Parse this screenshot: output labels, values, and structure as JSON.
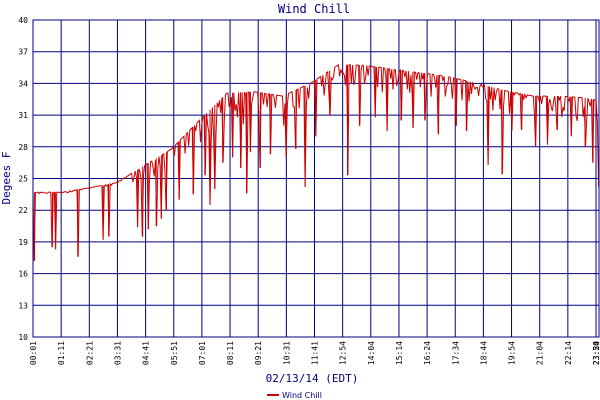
{
  "chart_data": {
    "type": "line",
    "title": "Wind Chill",
    "xlabel": "02/13/14 (EDT)",
    "ylabel": "Degees F",
    "ylim": [
      10,
      40
    ],
    "yticks": [
      10,
      13,
      16,
      19,
      22,
      25,
      28,
      31,
      34,
      37,
      40
    ],
    "xtick_labels": [
      "00:01",
      "01:11",
      "02:21",
      "03:31",
      "04:41",
      "05:51",
      "07:01",
      "08:11",
      "09:21",
      "10:31",
      "11:41",
      "12:54",
      "14:04",
      "15:14",
      "16:24",
      "17:34",
      "18:44",
      "19:54",
      "21:04",
      "22:14",
      "23:24",
      "23:50"
    ],
    "grid": true,
    "legend": "bottom-center",
    "series": [
      {
        "name": "Wind Chill",
        "color": "#cc0000",
        "baseline": [
          {
            "x": "00:01",
            "y": 23.7
          },
          {
            "x": "01:11",
            "y": 23.7
          },
          {
            "x": "02:21",
            "y": 24.1
          },
          {
            "x": "03:31",
            "y": 24.6
          },
          {
            "x": "04:41",
            "y": 26.2
          },
          {
            "x": "05:51",
            "y": 27.8
          },
          {
            "x": "07:01",
            "y": 30.5
          },
          {
            "x": "08:11",
            "y": 33.1
          },
          {
            "x": "09:21",
            "y": 33.2
          },
          {
            "x": "10:31",
            "y": 32.8
          },
          {
            "x": "11:41",
            "y": 34.0
          },
          {
            "x": "12:54",
            "y": 35.8
          },
          {
            "x": "14:04",
            "y": 35.7
          },
          {
            "x": "15:14",
            "y": 35.3
          },
          {
            "x": "16:24",
            "y": 35.0
          },
          {
            "x": "17:34",
            "y": 34.6
          },
          {
            "x": "18:44",
            "y": 34.0
          },
          {
            "x": "19:54",
            "y": 33.3
          },
          {
            "x": "21:04",
            "y": 32.8
          },
          {
            "x": "22:14",
            "y": 32.8
          },
          {
            "x": "23:24",
            "y": 32.6
          },
          {
            "x": "23:50",
            "y": 32.3
          }
        ],
        "dips": [
          {
            "x": "00:05",
            "y": 17.2
          },
          {
            "x": "00:50",
            "y": 18.5
          },
          {
            "x": "00:58",
            "y": 18.3
          },
          {
            "x": "01:54",
            "y": 17.6
          },
          {
            "x": "02:58",
            "y": 19.2
          },
          {
            "x": "03:12",
            "y": 19.5
          },
          {
            "x": "04:25",
            "y": 20.4
          },
          {
            "x": "04:38",
            "y": 19.5
          },
          {
            "x": "04:52",
            "y": 20.2
          },
          {
            "x": "05:12",
            "y": 20.5
          },
          {
            "x": "05:25",
            "y": 21.2
          },
          {
            "x": "05:38",
            "y": 22.0
          },
          {
            "x": "06:10",
            "y": 23.0
          },
          {
            "x": "06:45",
            "y": 23.5
          },
          {
            "x": "07:15",
            "y": 25.3
          },
          {
            "x": "07:28",
            "y": 22.5
          },
          {
            "x": "07:40",
            "y": 24.0
          },
          {
            "x": "08:00",
            "y": 26.5
          },
          {
            "x": "08:25",
            "y": 27.0
          },
          {
            "x": "08:45",
            "y": 26.0
          },
          {
            "x": "09:00",
            "y": 23.6
          },
          {
            "x": "09:10",
            "y": 27.5
          },
          {
            "x": "09:35",
            "y": 26.0
          },
          {
            "x": "10:00",
            "y": 27.3
          },
          {
            "x": "10:40",
            "y": 27.0
          },
          {
            "x": "11:05",
            "y": 27.8
          },
          {
            "x": "11:28",
            "y": 24.2
          },
          {
            "x": "11:55",
            "y": 29.0
          },
          {
            "x": "12:30",
            "y": 31.0
          },
          {
            "x": "13:15",
            "y": 25.3
          },
          {
            "x": "13:45",
            "y": 30.0
          },
          {
            "x": "14:25",
            "y": 30.8
          },
          {
            "x": "14:55",
            "y": 29.5
          },
          {
            "x": "15:30",
            "y": 30.5
          },
          {
            "x": "16:00",
            "y": 29.8
          },
          {
            "x": "16:30",
            "y": 30.5
          },
          {
            "x": "17:05",
            "y": 29.2
          },
          {
            "x": "17:50",
            "y": 30.0
          },
          {
            "x": "18:15",
            "y": 29.5
          },
          {
            "x": "19:10",
            "y": 26.3
          },
          {
            "x": "19:45",
            "y": 25.4
          },
          {
            "x": "20:10",
            "y": 29.5
          },
          {
            "x": "20:35",
            "y": 29.6
          },
          {
            "x": "21:10",
            "y": 28.0
          },
          {
            "x": "21:40",
            "y": 28.2
          },
          {
            "x": "22:05",
            "y": 29.6
          },
          {
            "x": "22:40",
            "y": 29.0
          },
          {
            "x": "23:15",
            "y": 28.0
          },
          {
            "x": "23:35",
            "y": 26.5
          },
          {
            "x": "23:50",
            "y": 24.2
          }
        ]
      }
    ]
  }
}
